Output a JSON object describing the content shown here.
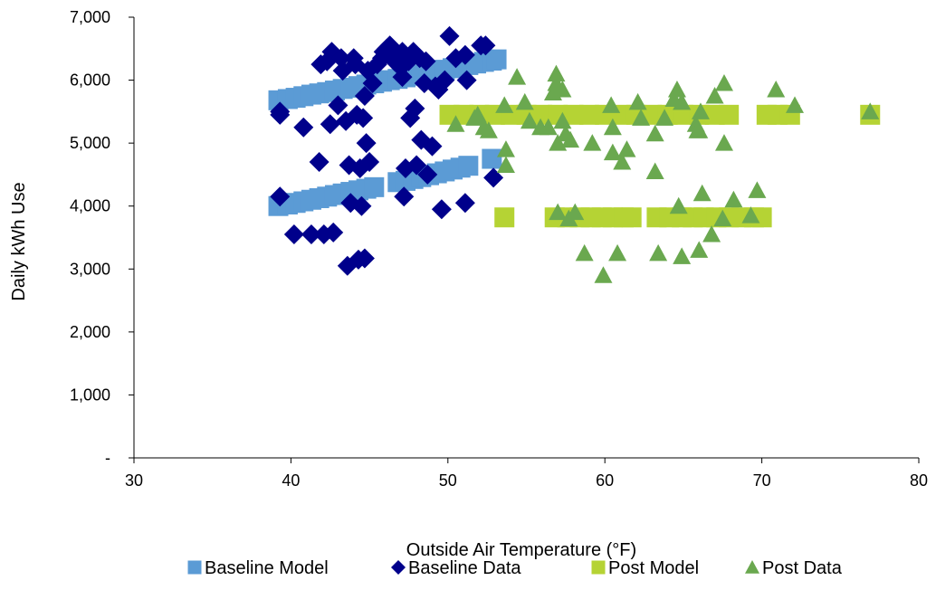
{
  "chart_data": {
    "type": "scatter",
    "title": "",
    "xlabel": "Outside Air Temperature (°F)",
    "ylabel": "Daily kWh Use",
    "xlim": [
      30,
      80
    ],
    "ylim": [
      0,
      7000
    ],
    "x_ticks": [
      30,
      40,
      50,
      60,
      70,
      80
    ],
    "x_tick_labels": [
      "30",
      "40",
      "50",
      "60",
      "70",
      "80"
    ],
    "y_ticks": [
      0,
      1000,
      2000,
      3000,
      4000,
      5000,
      6000,
      7000
    ],
    "y_tick_labels": [
      "-",
      "1,000",
      "2,000",
      "3,000",
      "4,000",
      "5,000",
      "6,000",
      "7,000"
    ],
    "grid": false,
    "legend_position": "bottom",
    "series": [
      {
        "name": "Baseline Model",
        "marker": "square",
        "color": "#5b9bd5",
        "points": [
          [
            39.2,
            5680
          ],
          [
            39.8,
            5700
          ],
          [
            40.3,
            5720
          ],
          [
            40.8,
            5745
          ],
          [
            41.3,
            5770
          ],
          [
            41.8,
            5790
          ],
          [
            42.3,
            5810
          ],
          [
            42.8,
            5835
          ],
          [
            43.3,
            5860
          ],
          [
            43.8,
            5880
          ],
          [
            44.3,
            5905
          ],
          [
            44.8,
            5930
          ],
          [
            45.3,
            5950
          ],
          [
            45.8,
            5975
          ],
          [
            46.3,
            6000
          ],
          [
            46.8,
            6020
          ],
          [
            47.3,
            6045
          ],
          [
            47.8,
            6070
          ],
          [
            48.3,
            6090
          ],
          [
            48.8,
            6115
          ],
          [
            49.3,
            6140
          ],
          [
            49.8,
            6165
          ],
          [
            50.3,
            6190
          ],
          [
            50.8,
            6210
          ],
          [
            51.3,
            6240
          ],
          [
            51.8,
            6265
          ],
          [
            52.3,
            6290
          ],
          [
            52.8,
            6310
          ],
          [
            53.1,
            6330
          ],
          [
            39.2,
            4000
          ],
          [
            39.8,
            4025
          ],
          [
            40.3,
            4050
          ],
          [
            40.8,
            4075
          ],
          [
            41.3,
            4100
          ],
          [
            41.8,
            4125
          ],
          [
            42.3,
            4150
          ],
          [
            42.8,
            4175
          ],
          [
            43.3,
            4200
          ],
          [
            43.8,
            4225
          ],
          [
            44.3,
            4250
          ],
          [
            44.8,
            4275
          ],
          [
            45.3,
            4300
          ],
          [
            46.8,
            4380
          ],
          [
            47.3,
            4400
          ],
          [
            47.8,
            4430
          ],
          [
            48.3,
            4460
          ],
          [
            48.8,
            4490
          ],
          [
            49.3,
            4520
          ],
          [
            49.8,
            4550
          ],
          [
            50.3,
            4580
          ],
          [
            50.8,
            4610
          ],
          [
            51.3,
            4640
          ],
          [
            52.8,
            4750
          ]
        ]
      },
      {
        "name": "Baseline Data",
        "marker": "diamond",
        "color": "#00008b",
        "points": [
          [
            39.3,
            5500
          ],
          [
            39.3,
            5450
          ],
          [
            39.3,
            4150
          ],
          [
            40.2,
            3550
          ],
          [
            40.8,
            5250
          ],
          [
            41.3,
            3550
          ],
          [
            41.8,
            4700
          ],
          [
            41.9,
            6250
          ],
          [
            42.1,
            3550
          ],
          [
            42.3,
            6300
          ],
          [
            42.5,
            5300
          ],
          [
            42.6,
            6450
          ],
          [
            42.7,
            3580
          ],
          [
            43.0,
            5600
          ],
          [
            43.2,
            6350
          ],
          [
            43.3,
            6150
          ],
          [
            43.5,
            5350
          ],
          [
            43.6,
            3050
          ],
          [
            43.7,
            4650
          ],
          [
            43.8,
            4050
          ],
          [
            44.0,
            6350
          ],
          [
            44.1,
            6250
          ],
          [
            44.2,
            5450
          ],
          [
            44.3,
            3150
          ],
          [
            44.4,
            4600
          ],
          [
            44.5,
            4000
          ],
          [
            44.6,
            5400
          ],
          [
            44.7,
            3170
          ],
          [
            44.7,
            5750
          ],
          [
            44.8,
            5000
          ],
          [
            44.9,
            6150
          ],
          [
            45.0,
            4700
          ],
          [
            45.2,
            5950
          ],
          [
            45.5,
            6250
          ],
          [
            45.8,
            6350
          ],
          [
            45.9,
            6450
          ],
          [
            46.1,
            6500
          ],
          [
            46.3,
            6550
          ],
          [
            46.5,
            6350
          ],
          [
            46.6,
            6300
          ],
          [
            46.8,
            6400
          ],
          [
            47.0,
            6200
          ],
          [
            47.1,
            6450
          ],
          [
            47.1,
            6050
          ],
          [
            47.2,
            4150
          ],
          [
            47.3,
            4600
          ],
          [
            47.5,
            6300
          ],
          [
            47.6,
            5400
          ],
          [
            47.8,
            6450
          ],
          [
            47.9,
            5550
          ],
          [
            48.0,
            4650
          ],
          [
            48.2,
            6350
          ],
          [
            48.3,
            5050
          ],
          [
            48.5,
            5950
          ],
          [
            48.6,
            6300
          ],
          [
            48.7,
            4500
          ],
          [
            49.0,
            4950
          ],
          [
            49.2,
            5900
          ],
          [
            49.4,
            5850
          ],
          [
            49.6,
            3950
          ],
          [
            49.8,
            6000
          ],
          [
            50.1,
            6700
          ],
          [
            50.5,
            6350
          ],
          [
            51.1,
            6400
          ],
          [
            51.1,
            4050
          ],
          [
            51.2,
            6000
          ],
          [
            52.1,
            6550
          ],
          [
            52.4,
            6550
          ],
          [
            52.9,
            4450
          ]
        ]
      },
      {
        "name": "Post Model",
        "marker": "square",
        "color": "#b5d334",
        "points": [
          [
            50.1,
            5450
          ],
          [
            51.0,
            5450
          ],
          [
            52.0,
            5450
          ],
          [
            53.0,
            5450
          ],
          [
            54.0,
            5450
          ],
          [
            55.0,
            5450
          ],
          [
            56.0,
            5450
          ],
          [
            57.0,
            5450
          ],
          [
            58.0,
            5450
          ],
          [
            59.0,
            5450
          ],
          [
            60.0,
            5450
          ],
          [
            61.0,
            5450
          ],
          [
            62.0,
            5450
          ],
          [
            63.0,
            5450
          ],
          [
            64.0,
            5450
          ],
          [
            65.0,
            5450
          ],
          [
            66.0,
            5450
          ],
          [
            67.0,
            5450
          ],
          [
            67.9,
            5450
          ],
          [
            70.3,
            5450
          ],
          [
            71.0,
            5450
          ],
          [
            71.8,
            5450
          ],
          [
            76.9,
            5450
          ],
          [
            53.6,
            3820
          ],
          [
            56.8,
            3820
          ],
          [
            57.6,
            3820
          ],
          [
            58.4,
            3820
          ],
          [
            59.1,
            3820
          ],
          [
            59.8,
            3820
          ],
          [
            60.5,
            3820
          ],
          [
            61.2,
            3820
          ],
          [
            61.7,
            3820
          ],
          [
            63.3,
            3820
          ],
          [
            64.1,
            3820
          ],
          [
            64.9,
            3820
          ],
          [
            65.6,
            3820
          ],
          [
            66.3,
            3820
          ],
          [
            67.1,
            3820
          ],
          [
            67.9,
            3820
          ],
          [
            68.7,
            3820
          ],
          [
            69.5,
            3820
          ],
          [
            70.0,
            3820
          ]
        ]
      },
      {
        "name": "Post Data",
        "marker": "triangle",
        "color": "#6aa84f",
        "points": [
          [
            50.5,
            5300
          ],
          [
            51.7,
            5400
          ],
          [
            51.9,
            5450
          ],
          [
            52.3,
            5250
          ],
          [
            52.6,
            5200
          ],
          [
            53.6,
            5600
          ],
          [
            53.7,
            4900
          ],
          [
            53.7,
            4650
          ],
          [
            54.4,
            6050
          ],
          [
            54.9,
            5650
          ],
          [
            55.2,
            5350
          ],
          [
            55.9,
            5250
          ],
          [
            56.4,
            5250
          ],
          [
            56.7,
            5800
          ],
          [
            56.9,
            6100
          ],
          [
            56.9,
            5950
          ],
          [
            57.0,
            5000
          ],
          [
            57.0,
            3900
          ],
          [
            57.3,
            5850
          ],
          [
            57.3,
            5350
          ],
          [
            57.5,
            5150
          ],
          [
            57.7,
            3800
          ],
          [
            57.8,
            5050
          ],
          [
            58.1,
            3900
          ],
          [
            58.7,
            3250
          ],
          [
            59.2,
            5000
          ],
          [
            59.9,
            2900
          ],
          [
            60.4,
            5600
          ],
          [
            60.5,
            5250
          ],
          [
            60.5,
            4850
          ],
          [
            60.8,
            3250
          ],
          [
            61.1,
            4700
          ],
          [
            61.4,
            4900
          ],
          [
            62.1,
            5650
          ],
          [
            62.3,
            5400
          ],
          [
            63.2,
            5150
          ],
          [
            63.2,
            4550
          ],
          [
            63.4,
            3250
          ],
          [
            63.8,
            5400
          ],
          [
            64.4,
            5700
          ],
          [
            64.6,
            5850
          ],
          [
            64.7,
            4000
          ],
          [
            64.9,
            5650
          ],
          [
            64.9,
            3200
          ],
          [
            65.8,
            5300
          ],
          [
            65.9,
            5200
          ],
          [
            66.0,
            5200
          ],
          [
            66.0,
            3300
          ],
          [
            66.1,
            5500
          ],
          [
            66.2,
            4200
          ],
          [
            66.8,
            3550
          ],
          [
            67.0,
            5750
          ],
          [
            67.5,
            3800
          ],
          [
            67.6,
            5950
          ],
          [
            67.6,
            5000
          ],
          [
            68.2,
            4100
          ],
          [
            69.3,
            3850
          ],
          [
            69.7,
            4250
          ],
          [
            70.9,
            5850
          ],
          [
            72.1,
            5600
          ],
          [
            76.9,
            5500
          ]
        ]
      }
    ]
  }
}
